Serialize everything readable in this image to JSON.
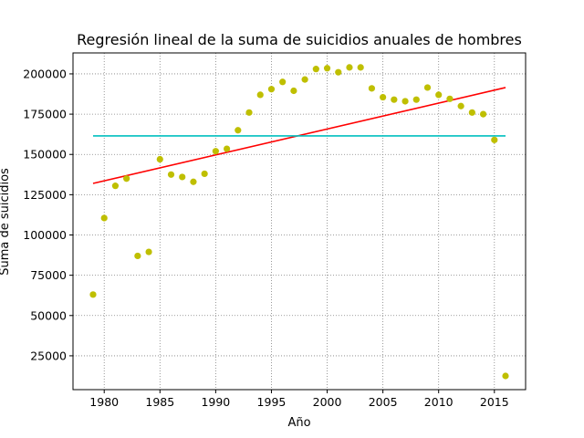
{
  "chart_data": {
    "type": "scatter",
    "title": "Regresión lineal de la suma de suicidios anuales de hombres",
    "xlabel": "Año",
    "ylabel": "Suma de suicidios",
    "xlim": [
      1977.2,
      2017.8
    ],
    "ylim": [
      4000,
      213000
    ],
    "xticks": [
      1980,
      1985,
      1990,
      1995,
      2000,
      2005,
      2010,
      2015
    ],
    "yticks": [
      25000,
      50000,
      75000,
      100000,
      125000,
      150000,
      175000,
      200000
    ],
    "grid": true,
    "grid_style": "dotted",
    "points_color": "#bfbf00",
    "points": [
      {
        "x": 1979,
        "y": 63000
      },
      {
        "x": 1980,
        "y": 110500
      },
      {
        "x": 1981,
        "y": 130500
      },
      {
        "x": 1982,
        "y": 135000
      },
      {
        "x": 1983,
        "y": 87000
      },
      {
        "x": 1984,
        "y": 89500
      },
      {
        "x": 1985,
        "y": 147000
      },
      {
        "x": 1986,
        "y": 137500
      },
      {
        "x": 1987,
        "y": 136000
      },
      {
        "x": 1988,
        "y": 133000
      },
      {
        "x": 1989,
        "y": 138000
      },
      {
        "x": 1990,
        "y": 152000
      },
      {
        "x": 1991,
        "y": 153500
      },
      {
        "x": 1992,
        "y": 165000
      },
      {
        "x": 1993,
        "y": 176000
      },
      {
        "x": 1994,
        "y": 187000
      },
      {
        "x": 1995,
        "y": 190500
      },
      {
        "x": 1996,
        "y": 195000
      },
      {
        "x": 1997,
        "y": 189500
      },
      {
        "x": 1998,
        "y": 196500
      },
      {
        "x": 1999,
        "y": 203000
      },
      {
        "x": 2000,
        "y": 203500
      },
      {
        "x": 2001,
        "y": 201000
      },
      {
        "x": 2002,
        "y": 204000
      },
      {
        "x": 2003,
        "y": 204000
      },
      {
        "x": 2004,
        "y": 191000
      },
      {
        "x": 2005,
        "y": 185500
      },
      {
        "x": 2006,
        "y": 184000
      },
      {
        "x": 2007,
        "y": 183000
      },
      {
        "x": 2008,
        "y": 184000
      },
      {
        "x": 2009,
        "y": 191500
      },
      {
        "x": 2010,
        "y": 187000
      },
      {
        "x": 2011,
        "y": 184500
      },
      {
        "x": 2012,
        "y": 180000
      },
      {
        "x": 2013,
        "y": 176000
      },
      {
        "x": 2014,
        "y": 175000
      },
      {
        "x": 2015,
        "y": 159000
      },
      {
        "x": 2016,
        "y": 12500
      }
    ],
    "lines": [
      {
        "color": "#ff0000",
        "x": [
          1979,
          2016
        ],
        "y": [
          132000,
          191500
        ]
      },
      {
        "color": "#00bfbf",
        "x": [
          1979,
          2016
        ],
        "y": [
          161500,
          161500
        ]
      }
    ]
  }
}
